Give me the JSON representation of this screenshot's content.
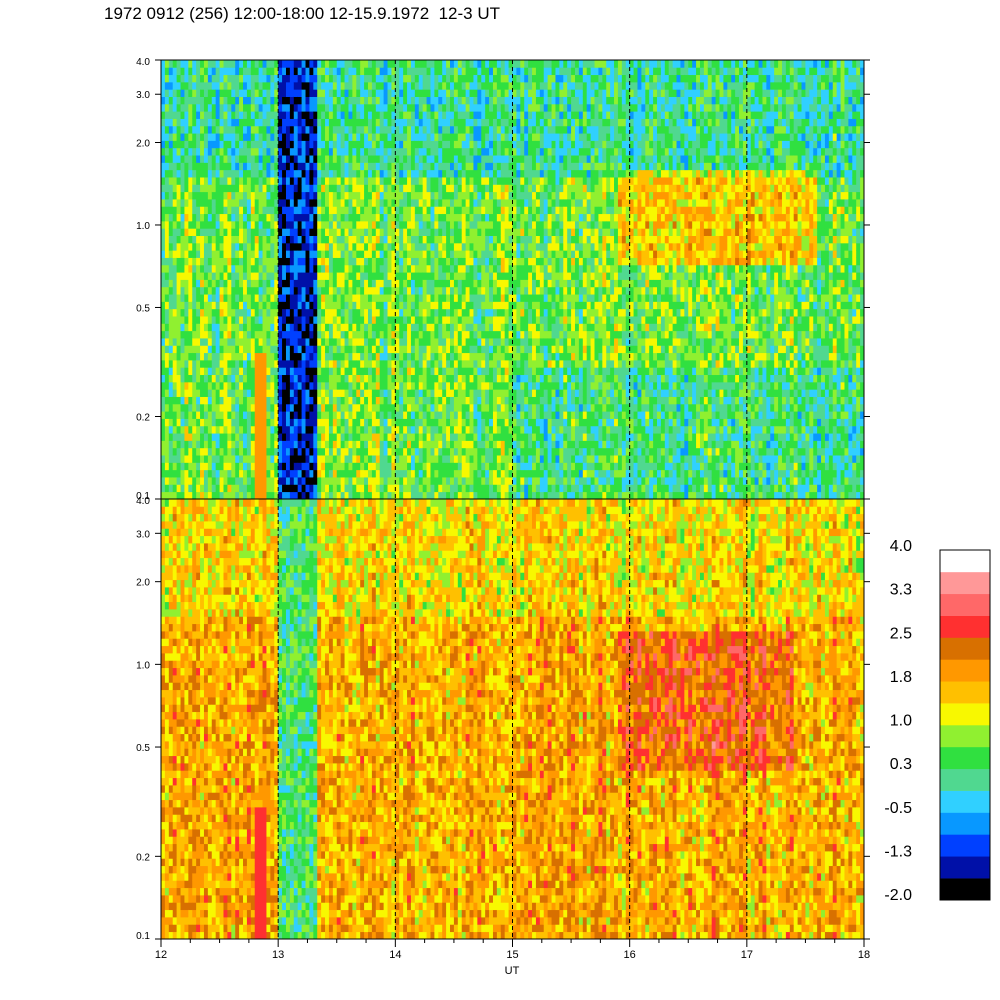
{
  "title": "1972 0912 (256) 12:00-18:00 12-15.9.1972  12-3 UT",
  "chart_data": {
    "type": "heatmap",
    "xlabel": "UT",
    "x_range": [
      12,
      18
    ],
    "x_ticks": [
      "12",
      "13",
      "14",
      "15",
      "16",
      "17",
      "18"
    ],
    "dashed_hours": [
      13,
      14,
      15,
      16,
      17
    ],
    "y_scale": "log",
    "y_range": [
      0.1,
      4.0
    ],
    "y_ticks": [
      {
        "v": 4.0,
        "label": "4.0"
      },
      {
        "v": 3.0,
        "label": "3.0"
      },
      {
        "v": 2.0,
        "label": "2.0"
      },
      {
        "v": 1.0,
        "label": "1.0"
      },
      {
        "v": 0.5,
        "label": "0.5"
      },
      {
        "v": 0.2,
        "label": "0.2"
      },
      {
        "v": 0.1,
        "label": "0.1"
      }
    ],
    "panels": [
      {
        "name": "upper",
        "baseline": 0.6
      },
      {
        "name": "lower",
        "baseline": 1.75
      }
    ],
    "colorbar": {
      "range": [
        -2.0,
        4.0
      ],
      "labels": [
        "4.0",
        "3.3",
        "2.5",
        "1.8",
        "1.0",
        "0.3",
        "-0.5",
        "-1.3",
        "-2.0"
      ],
      "colors": [
        "#000000",
        "#0010a8",
        "#0040ff",
        "#0898ff",
        "#30d0ff",
        "#50d890",
        "#30e040",
        "#90f030",
        "#f8f800",
        "#ffc000",
        "#ff9800",
        "#d87000",
        "#ff3030",
        "#ff6868",
        "#ff9898",
        "#ffffff"
      ]
    }
  }
}
